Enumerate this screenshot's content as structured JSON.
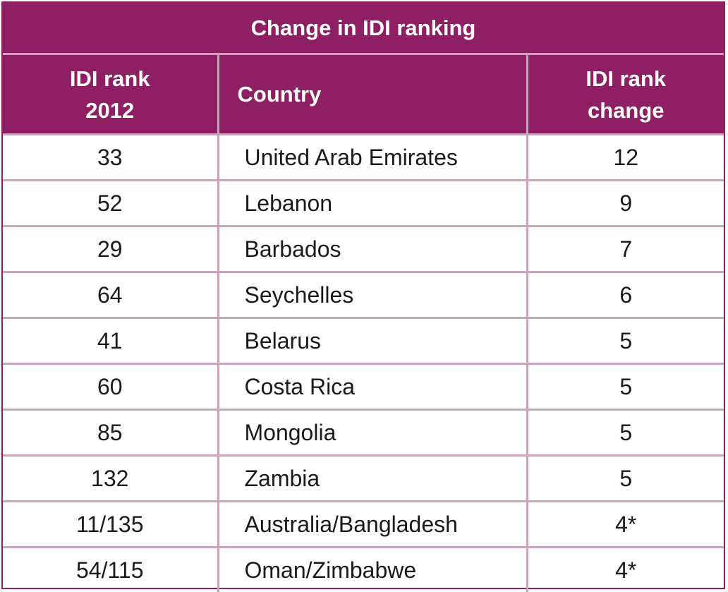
{
  "table": {
    "title": "Change in IDI ranking",
    "headers": {
      "rank_line1": "IDI rank",
      "rank_line2": "2012",
      "country": "Country",
      "change_line1": "IDI rank",
      "change_line2": "change"
    },
    "rows": [
      {
        "rank": "33",
        "country": "United Arab Emirates",
        "change": "12"
      },
      {
        "rank": "52",
        "country": "Lebanon",
        "change": "9"
      },
      {
        "rank": "29",
        "country": "Barbados",
        "change": "7"
      },
      {
        "rank": "64",
        "country": "Seychelles",
        "change": "6"
      },
      {
        "rank": "41",
        "country": "Belarus",
        "change": "5"
      },
      {
        "rank": "60",
        "country": "Costa Rica",
        "change": "5"
      },
      {
        "rank": "85",
        "country": "Mongolia",
        "change": "5"
      },
      {
        "rank": "132",
        "country": "Zambia",
        "change": "5"
      },
      {
        "rank": "11/135",
        "country": "Australia/Bangladesh",
        "change": "4*"
      },
      {
        "rank": "54/115",
        "country": "Oman/Zimbabwe",
        "change": "4*"
      }
    ],
    "colors": {
      "header_bg": "#8e1f63",
      "grid_line": "#c9a4bc",
      "header_text": "#ffffff"
    }
  }
}
